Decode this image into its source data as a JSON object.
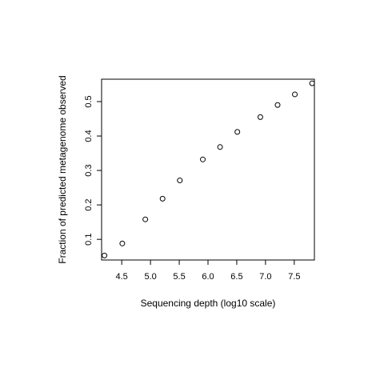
{
  "chart_data": {
    "type": "scatter",
    "xlabel": "Sequencing depth (log10 scale)",
    "ylabel": "Fraction of predicted metagenome observed",
    "xlim": [
      4.15,
      7.85
    ],
    "ylim": [
      0.04,
      0.565
    ],
    "xticks": [
      "4.5",
      "5.0",
      "5.5",
      "6.0",
      "6.5",
      "7.0",
      "7.5"
    ],
    "yticks": [
      "0.1",
      "0.2",
      "0.3",
      "0.4",
      "0.5"
    ],
    "grid": false,
    "legend": "none",
    "x": [
      4.2,
      4.51,
      4.91,
      5.21,
      5.51,
      5.91,
      6.21,
      6.51,
      6.91,
      7.21,
      7.51,
      7.81
    ],
    "y": [
      0.053,
      0.088,
      0.158,
      0.218,
      0.271,
      0.332,
      0.368,
      0.412,
      0.455,
      0.49,
      0.521,
      0.553
    ]
  }
}
